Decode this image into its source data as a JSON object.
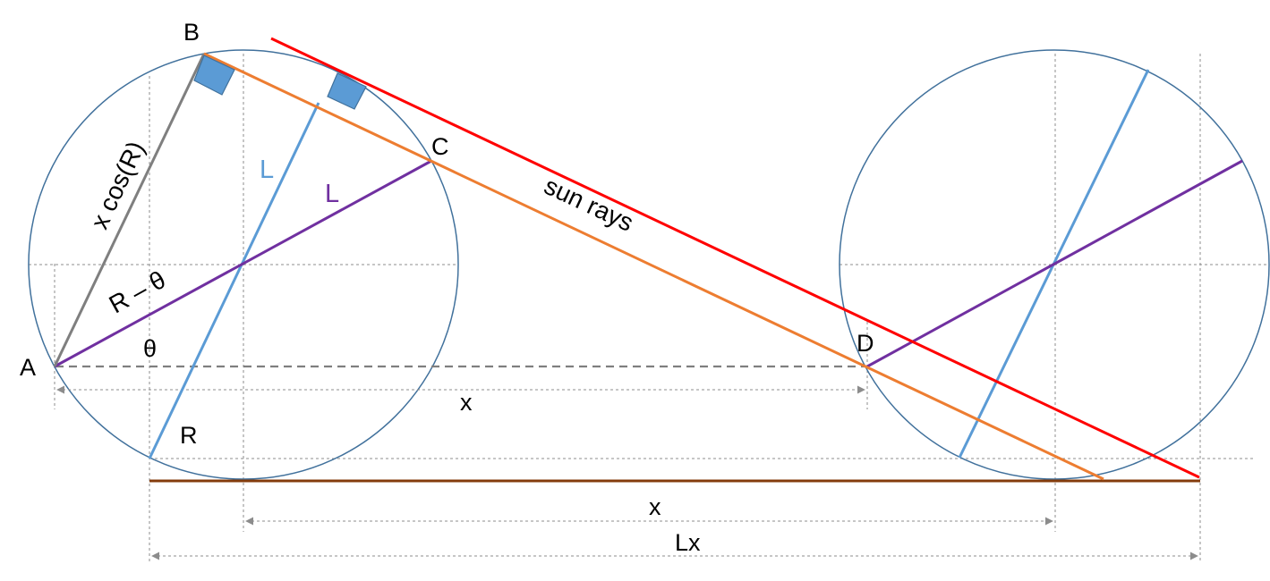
{
  "labels": {
    "point_a": "A",
    "point_b": "B",
    "point_c": "C",
    "point_d": "D",
    "length_l_blue": "L",
    "length_l_purple": "L",
    "x_cos_r": "x cos(R)",
    "r_minus_theta": "R – θ",
    "theta": "θ",
    "r": "R",
    "sun_rays": "sun rays",
    "x_upper": "x",
    "x_lower": "x",
    "lx": "Lx"
  },
  "colors": {
    "circle": "#41719c",
    "blue_line": "#5b9bd5",
    "purple_line": "#7030a0",
    "orange_line": "#ed7d31",
    "red_line": "#ff0000",
    "ground": "#843c0c",
    "gray_line": "#7f7f7f",
    "guide": "#8c8c8c",
    "right_angle_fill": "#5b9bd5",
    "right_angle_stroke": "#41719c",
    "text": "#000000"
  },
  "icons": {
    "right_angle_marker": "square-marker",
    "dimension_arrow": "arrowhead"
  }
}
